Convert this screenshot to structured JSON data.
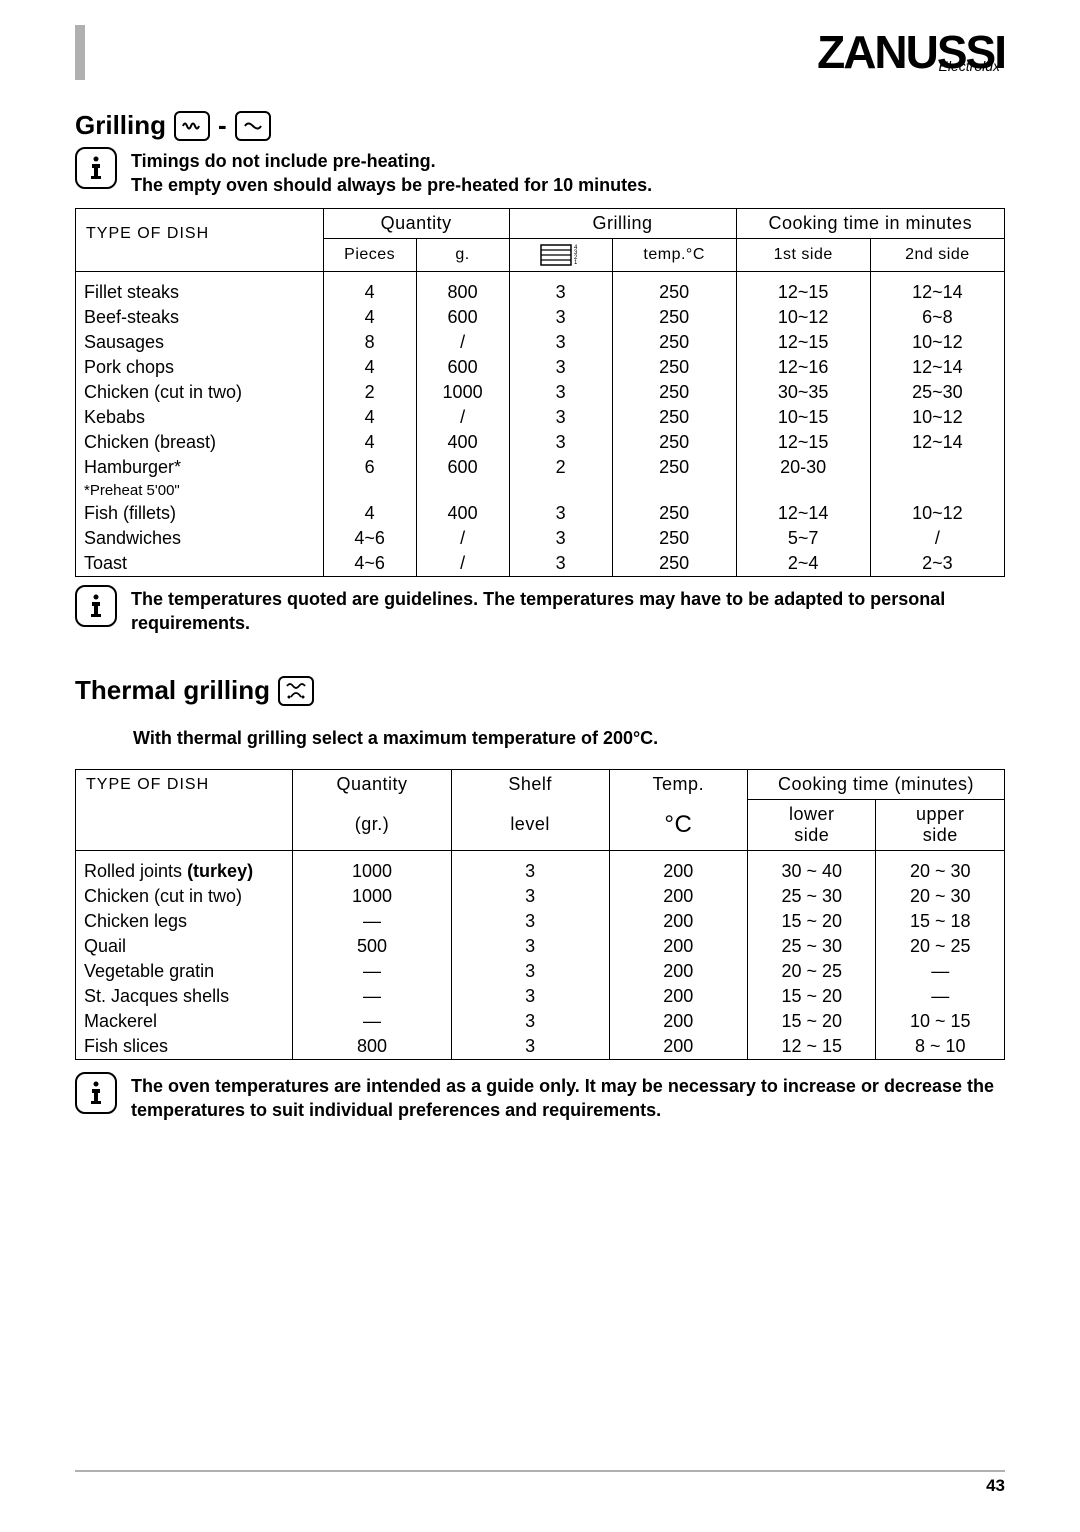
{
  "brand": "ZANUSSI",
  "brand_sub": "Electrolux",
  "page_number": "43",
  "section1": {
    "heading": "Grilling",
    "note1": "Timings do not include pre-heating.",
    "note2": "The empty oven should always be pre-heated for 10 minutes.",
    "footnote": "The temperatures quoted are guidelines. The temperatures may have to be adapted to personal requirements.",
    "table": {
      "head": {
        "type": "TYPE OF DISH",
        "quantity": "Quantity",
        "grilling": "Grilling",
        "cooktime": "Cooking time in minutes",
        "pieces": "Pieces",
        "g": "g.",
        "temp": "temp.°C",
        "side1": "1st side",
        "side2": "2nd side"
      },
      "rows": [
        {
          "type": "Fillet steaks",
          "pieces": "4",
          "g": "800",
          "shelf": "3",
          "temp": "250",
          "s1": "12~15",
          "s2": "12~14"
        },
        {
          "type": "Beef-steaks",
          "pieces": "4",
          "g": "600",
          "shelf": "3",
          "temp": "250",
          "s1": "10~12",
          "s2": "6~8"
        },
        {
          "type": "Sausages",
          "pieces": "8",
          "g": "/",
          "shelf": "3",
          "temp": "250",
          "s1": "12~15",
          "s2": "10~12"
        },
        {
          "type": "Pork chops",
          "pieces": "4",
          "g": "600",
          "shelf": "3",
          "temp": "250",
          "s1": "12~16",
          "s2": "12~14"
        },
        {
          "type": "Chicken  (cut in two)",
          "pieces": "2",
          "g": "1000",
          "shelf": "3",
          "temp": "250",
          "s1": "30~35",
          "s2": "25~30"
        },
        {
          "type": "Kebabs",
          "pieces": "4",
          "g": "/",
          "shelf": "3",
          "temp": "250",
          "s1": "10~15",
          "s2": "10~12"
        },
        {
          "type": "Chicken (breast)",
          "pieces": "4",
          "g": "400",
          "shelf": "3",
          "temp": "250",
          "s1": "12~15",
          "s2": "12~14"
        },
        {
          "type": "Hamburger*",
          "pieces": "6",
          "g": "600",
          "shelf": "2",
          "temp": "250",
          "s1": "20-30",
          "s2": ""
        },
        {
          "type": "*Preheat 5'00\"",
          "pieces": "",
          "g": "",
          "shelf": "",
          "temp": "",
          "s1": "",
          "s2": ""
        },
        {
          "type": "Fish (fillets)",
          "pieces": "4",
          "g": "400",
          "shelf": "3",
          "temp": "250",
          "s1": "12~14",
          "s2": "10~12"
        },
        {
          "type": "Sandwiches",
          "pieces": "4~6",
          "g": "/",
          "shelf": "3",
          "temp": "250",
          "s1": "5~7",
          "s2": "/"
        },
        {
          "type": "Toast",
          "pieces": "4~6",
          "g": "/",
          "shelf": "3",
          "temp": "250",
          "s1": "2~4",
          "s2": "2~3"
        }
      ]
    }
  },
  "section2": {
    "heading": "Thermal grilling",
    "note": "With thermal grilling select a maximum temperature of 200°C.",
    "footnote": "The oven temperatures are intended as a guide only. It may be necessary to increase or decrease the temperatures to suit individual preferences and requirements.",
    "table": {
      "head": {
        "type": "TYPE OF DISH",
        "qty": "Quantity",
        "qty2": "(gr.)",
        "shelf": "Shelf",
        "shelf2": "level",
        "temp": "Temp.",
        "temp2": "°C",
        "cook": "Cooking time (minutes)",
        "lower": "lower",
        "lower2": "side",
        "upper": "upper",
        "upper2": "side"
      },
      "rows": [
        {
          "type": "Rolled joints (turkey)",
          "type_b": "(turkey)",
          "qty": "1000",
          "shelf": "3",
          "temp": "200",
          "lo": "30 ~ 40",
          "up": "20 ~ 30"
        },
        {
          "type": "Chicken (cut in two)",
          "qty": "1000",
          "shelf": "3",
          "temp": "200",
          "lo": "25 ~ 30",
          "up": "20 ~ 30"
        },
        {
          "type": "Chicken legs",
          "qty": "—",
          "shelf": "3",
          "temp": "200",
          "lo": "15 ~ 20",
          "up": "15 ~ 18"
        },
        {
          "type": "Quail",
          "qty": "500",
          "shelf": "3",
          "temp": "200",
          "lo": "25 ~ 30",
          "up": "20 ~ 25"
        },
        {
          "type": "Vegetable gratin",
          "qty": "—",
          "shelf": "3",
          "temp": "200",
          "lo": "20 ~ 25",
          "up": "—"
        },
        {
          "type": "St. Jacques shells",
          "qty": "—",
          "shelf": "3",
          "temp": "200",
          "lo": "15 ~ 20",
          "up": "—"
        },
        {
          "type": "Mackerel",
          "qty": "—",
          "shelf": "3",
          "temp": "200",
          "lo": "15 ~ 20",
          "up": "10 ~ 15"
        },
        {
          "type": "Fish slices",
          "qty": "800",
          "shelf": "3",
          "temp": "200",
          "lo": "12 ~ 15",
          "up": "8 ~ 10"
        }
      ]
    }
  }
}
